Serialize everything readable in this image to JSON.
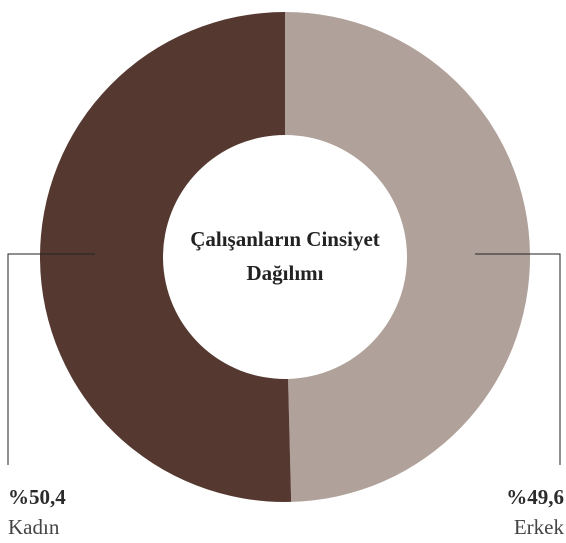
{
  "chart_data": {
    "type": "donut",
    "title": "Çalışanların Cinsiyet Dağılımı",
    "categories": [
      "Kadın",
      "Erkek"
    ],
    "values": [
      50.4,
      49.6
    ],
    "value_labels": [
      "%50,4",
      "%49,6"
    ],
    "colors": [
      "#553931",
      "#b0a19a"
    ]
  }
}
